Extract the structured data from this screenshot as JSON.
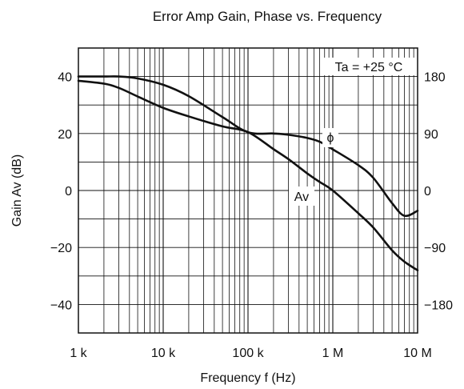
{
  "chart_data": {
    "type": "line",
    "title": "Error Amp Gain, Phase vs. Frequency",
    "xlabel": "Frequency f (Hz)",
    "ylabel": "Gain Av (dB)",
    "x_scale": "log",
    "xlim": [
      1000,
      10000000
    ],
    "ylim": [
      -50,
      50
    ],
    "y2lim": [
      -225,
      225
    ],
    "grid": true,
    "x_ticks": [
      {
        "value": 1000,
        "label": "1 k"
      },
      {
        "value": 10000,
        "label": "10 k"
      },
      {
        "value": 100000,
        "label": "100 k"
      },
      {
        "value": 1000000,
        "label": "1 M"
      },
      {
        "value": 10000000,
        "label": "10 M"
      }
    ],
    "y_ticks": [
      {
        "value": 40,
        "label": "40"
      },
      {
        "value": 20,
        "label": "20"
      },
      {
        "value": 0,
        "label": "0"
      },
      {
        "value": -20,
        "label": "−20"
      },
      {
        "value": -40,
        "label": "−40"
      }
    ],
    "y2_ticks": [
      {
        "value": 180,
        "label": "180"
      },
      {
        "value": 90,
        "label": "90"
      },
      {
        "value": 0,
        "label": "0"
      },
      {
        "value": -90,
        "label": "−90"
      },
      {
        "value": -180,
        "label": "−180"
      }
    ],
    "annotation": "Ta = +25 °C",
    "series": [
      {
        "name": "Av",
        "axis": "left",
        "x": [
          1000,
          2000,
          3000,
          5000,
          10000,
          20000,
          50000,
          100000,
          200000,
          300000,
          500000,
          700000,
          1000000,
          2000000,
          3000000,
          5000000,
          7000000,
          10000000
        ],
        "y": [
          38.5,
          37.5,
          36,
          33,
          29,
          26,
          22.5,
          20.5,
          14.5,
          11,
          6,
          3,
          0,
          -8,
          -13,
          -21,
          -25,
          -28
        ]
      },
      {
        "name": "ϕ",
        "axis": "right",
        "x": [
          1000,
          2000,
          3000,
          5000,
          10000,
          20000,
          50000,
          100000,
          200000,
          300000,
          500000,
          700000,
          1000000,
          2000000,
          3000000,
          5000000,
          7000000,
          10000000
        ],
        "y": [
          180,
          180,
          180,
          177,
          167,
          149,
          116,
          92,
          90,
          88,
          83,
          77,
          65,
          40,
          20,
          -20,
          -40,
          -32
        ]
      }
    ]
  }
}
